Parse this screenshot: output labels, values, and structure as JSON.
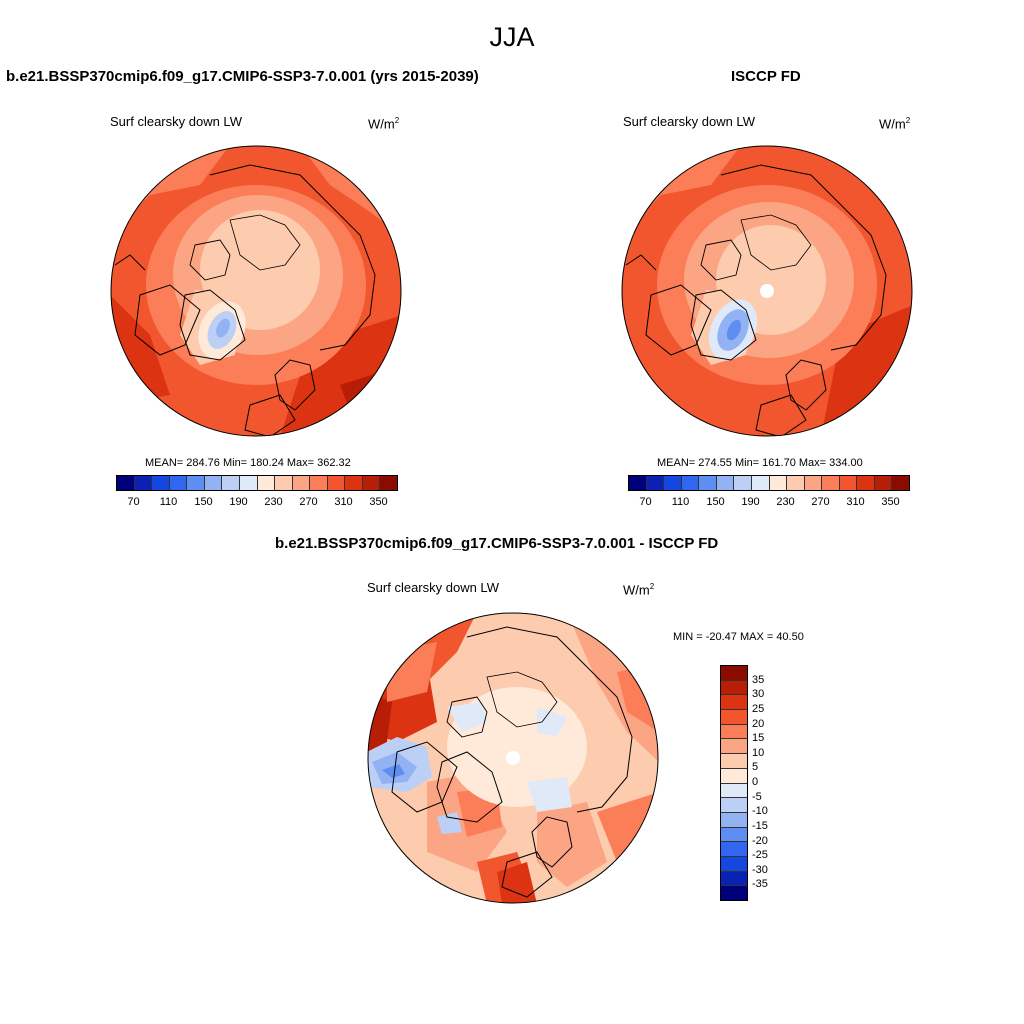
{
  "season": "JJA",
  "panels": [
    {
      "title": "b.e21.BSSP370cmip6.f09_g17.CMIP6-SSP3-7.0.001 (yrs 2015-2039)",
      "variable": "Surf clearsky down LW",
      "units_base": "W/m",
      "units_exp": "2",
      "stats": "MEAN= 284.76  Min= 180.24  Max= 362.32",
      "tick_labels": [
        "70",
        "110",
        "150",
        "190",
        "230",
        "270",
        "310",
        "350"
      ]
    },
    {
      "title": "ISCCP FD",
      "variable": "Surf clearsky down LW",
      "units_base": "W/m",
      "units_exp": "2",
      "stats": "MEAN= 274.55  Min= 161.70  Max= 334.00",
      "tick_labels": [
        "70",
        "110",
        "150",
        "190",
        "230",
        "270",
        "310",
        "350"
      ]
    },
    {
      "title": "b.e21.BSSP370cmip6.f09_g17.CMIP6-SSP3-7.0.001 - ISCCP FD",
      "variable": "Surf clearsky down LW",
      "units_base": "W/m",
      "units_exp": "2",
      "stats": "MIN = -20.47 MAX =  40.50",
      "tick_labels": [
        "35",
        "30",
        "25",
        "20",
        "15",
        "10",
        "5",
        "0",
        "-5",
        "-10",
        "-15",
        "-20",
        "-25",
        "-30",
        "-35"
      ]
    }
  ],
  "colors": {
    "abs_scale": [
      "#00007a",
      "#0a22b4",
      "#1446e0",
      "#3366f0",
      "#5f8ef2",
      "#92b2f4",
      "#bcd0f6",
      "#dfe9f8",
      "#ffe9d8",
      "#fdcbad",
      "#fca584",
      "#fb7e58",
      "#f2562e",
      "#dc3412",
      "#b81d06",
      "#8a0c00"
    ],
    "diff_scale": [
      "#8a0c00",
      "#b81d06",
      "#dc3412",
      "#f2562e",
      "#fb7e58",
      "#fca584",
      "#fdcbad",
      "#ffe9d8",
      "#dfe9f8",
      "#bcd0f6",
      "#92b2f4",
      "#5f8ef2",
      "#3366f0",
      "#1446e0",
      "#0a22b4",
      "#00007a"
    ]
  }
}
